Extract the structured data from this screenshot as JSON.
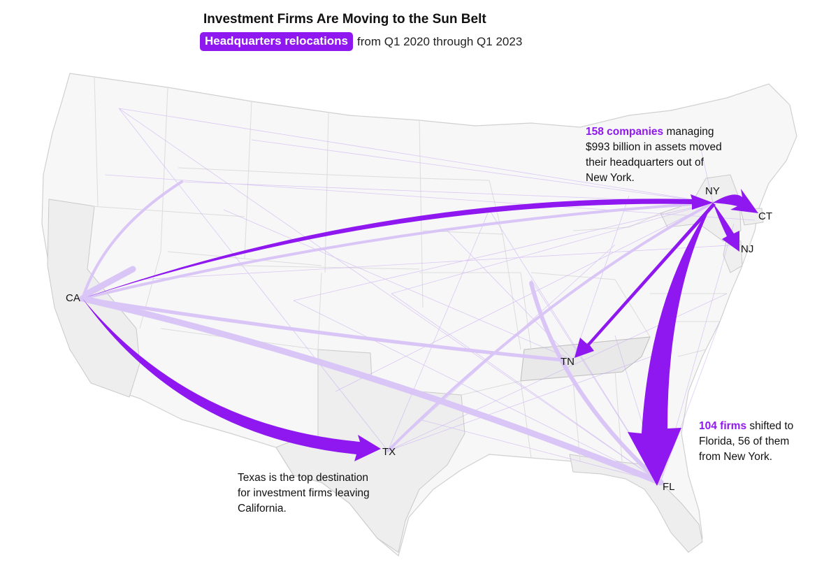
{
  "title": "Investment Firms Are Moving to the Sun Belt",
  "subtitle": {
    "highlight": "Headquarters relocations",
    "rest": "from Q1 2020 through Q1 2023"
  },
  "colors": {
    "accent": "#8f17f0",
    "light_flow": "#d8c2f5",
    "map_fill": "#f4f4f4",
    "map_border": "#d6d6d6",
    "highlight_state": "#ececec"
  },
  "labels": {
    "ca": "CA",
    "tx": "TX",
    "fl": "FL",
    "tn": "TN",
    "ny": "NY",
    "ct": "CT",
    "nj": "NJ"
  },
  "annotations": {
    "ny": {
      "highlight": "158 companies",
      "text1": " managing",
      "line2": "$993 billion in assets moved",
      "line3": "their headquarters out of",
      "line4": "New York."
    },
    "fl": {
      "highlight": "104 firms",
      "text1": " shifted to",
      "line2": "Florida, 56 of them",
      "line3": "from New York."
    },
    "tx": {
      "line1": "Texas is the top destination",
      "line2": "for investment firms leaving",
      "line3": "California."
    }
  },
  "flows_highlighted": [
    {
      "from": "CA",
      "to": "NY"
    },
    {
      "from": "CA",
      "to": "TX"
    },
    {
      "from": "NY",
      "to": "FL"
    },
    {
      "from": "NY",
      "to": "TN"
    },
    {
      "from": "NY",
      "to": "CT"
    },
    {
      "from": "NY",
      "to": "NJ"
    }
  ],
  "flows_light": [
    {
      "from": "CA",
      "to": "FL"
    },
    {
      "from": "CA",
      "to": "TN"
    },
    {
      "from": "NY",
      "to": "CA"
    },
    {
      "from": "TX",
      "to": "NY"
    }
  ]
}
